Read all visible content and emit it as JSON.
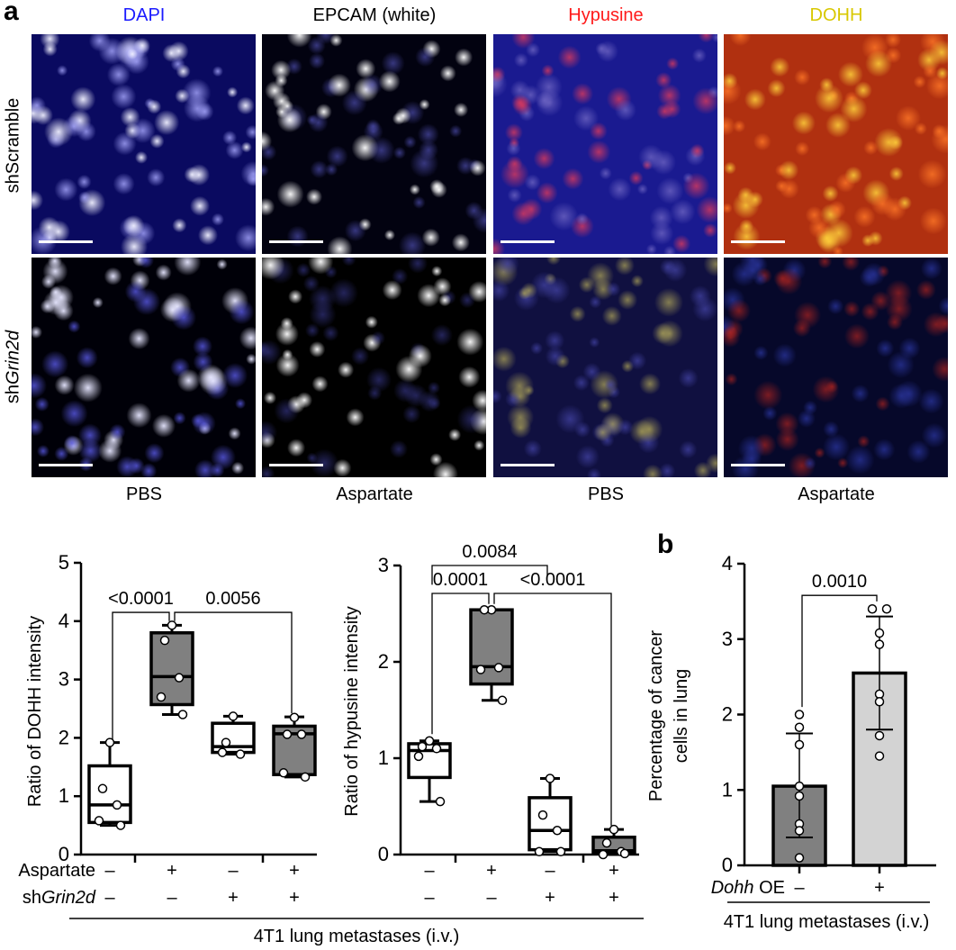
{
  "panel_a": {
    "letter": "a",
    "columns": [
      {
        "title": "DAPI",
        "color": "#1a1aff"
      },
      {
        "title": "EPCAM (white)",
        "color": "#000000"
      },
      {
        "title": "Hypusine",
        "color": "#ff1a1a"
      },
      {
        "title": "DOHH",
        "color": "#d8c800"
      }
    ],
    "rows": [
      "shScramble",
      "shGrin2d"
    ],
    "row_label_parts": [
      {
        "prefix": "shScramble",
        "italic": ""
      },
      {
        "prefix": "sh",
        "italic": "Grin2d"
      }
    ],
    "conditions": [
      "PBS",
      "Aspartate",
      "PBS",
      "Aspartate"
    ]
  },
  "panel_b": {
    "letter": "b"
  },
  "chart_data": [
    {
      "type": "box",
      "ylabel": "Ratio of DOHH intensity",
      "ylim": [
        0,
        5
      ],
      "yticks": [
        0,
        1,
        2,
        3,
        4,
        5
      ],
      "factor_rows": [
        {
          "label_prefix": "Aspartate",
          "label_italic": "",
          "signs": [
            "–",
            "+",
            "–",
            "+"
          ]
        },
        {
          "label_prefix": "sh",
          "label_italic": "Grin2d",
          "signs": [
            "–",
            "–",
            "+",
            "+"
          ]
        }
      ],
      "groups": [
        {
          "fill": "#ffffff",
          "q1": 0.55,
          "median": 0.85,
          "q3": 1.52,
          "min": 0.5,
          "max": 1.92,
          "points": [
            1.92,
            1.13,
            0.85,
            0.58,
            0.5
          ]
        },
        {
          "fill": "#808080",
          "q1": 2.57,
          "median": 3.05,
          "q3": 3.8,
          "min": 2.4,
          "max": 3.93,
          "points": [
            3.93,
            3.67,
            3.03,
            2.7,
            2.4
          ]
        },
        {
          "fill": "#ffffff",
          "q1": 1.75,
          "median": 1.85,
          "q3": 2.25,
          "min": 1.72,
          "max": 2.37,
          "points": [
            2.37,
            1.92,
            1.72,
            1.75
          ]
        },
        {
          "fill": "#808080",
          "q1": 1.37,
          "median": 2.07,
          "q3": 2.2,
          "min": 1.33,
          "max": 2.36,
          "points": [
            2.35,
            2.06,
            2.06,
            1.4,
            1.33
          ]
        }
      ],
      "comparisons": [
        {
          "from": 0,
          "to": 1,
          "y": 4.15,
          "label": "<0.0001",
          "from_bottom": 1.97,
          "to_bottom": 4.0
        },
        {
          "from": 1,
          "to": 3,
          "y": 4.15,
          "label": "0.0056",
          "from_bottom": 4.0,
          "to_bottom": 2.42
        }
      ]
    },
    {
      "type": "box",
      "ylabel": "Ratio of hypusine intensity",
      "ylim": [
        0,
        3
      ],
      "yticks": [
        0,
        1,
        2,
        3
      ],
      "factor_rows": [
        {
          "label_prefix": "",
          "label_italic": "",
          "signs": [
            "–",
            "+",
            "–",
            "+"
          ]
        },
        {
          "label_prefix": "",
          "label_italic": "",
          "signs": [
            "–",
            "–",
            "+",
            "+"
          ]
        }
      ],
      "groups": [
        {
          "fill": "#ffffff",
          "q1": 0.8,
          "median": 1.08,
          "q3": 1.15,
          "min": 0.55,
          "max": 1.18,
          "points": [
            1.18,
            1.12,
            1.1,
            1.02,
            0.55
          ]
        },
        {
          "fill": "#808080",
          "q1": 1.77,
          "median": 1.95,
          "q3": 2.54,
          "min": 1.6,
          "max": 2.54,
          "points": [
            2.54,
            2.54,
            1.94,
            1.92,
            1.6
          ]
        },
        {
          "fill": "#ffffff",
          "q1": 0.05,
          "median": 0.25,
          "q3": 0.59,
          "min": 0.03,
          "max": 0.79,
          "points": [
            0.79,
            0.41,
            0.25,
            0.03,
            0.03
          ]
        },
        {
          "fill": "#808080",
          "q1": 0.02,
          "median": 0.04,
          "q3": 0.18,
          "min": 0.0,
          "max": 0.26,
          "points": [
            0.26,
            0.12,
            0.03,
            0.0,
            0.01
          ]
        }
      ],
      "comparisons": [
        {
          "from": 0,
          "to": 1,
          "y": 2.71,
          "label": "0.0001",
          "from_bottom": 1.25,
          "to_bottom": 2.6
        },
        {
          "from": 1,
          "to": 3,
          "y": 2.71,
          "label": "<0.0001",
          "from_bottom": 2.6,
          "to_bottom": 0.3
        },
        {
          "from": 0,
          "to": 2,
          "y": 3.0,
          "label": "0.0084",
          "from_bottom": 2.8,
          "to_bottom": 2.9
        }
      ],
      "footer": "4T1 lung metastases (i.v.)"
    },
    {
      "type": "bar",
      "ylabel_lines": [
        "Percentage of cancer",
        "cells in lung"
      ],
      "ylim": [
        0,
        4
      ],
      "yticks": [
        0,
        1,
        2,
        3,
        4
      ],
      "factor_rows": [
        {
          "label_prefix": "",
          "label_italic": "Dohh",
          "label_suffix": " OE",
          "signs": [
            "–",
            "+"
          ]
        }
      ],
      "bars": [
        {
          "fill": "#808080",
          "mean": 1.05,
          "sd_low": 0.37,
          "sd_high": 1.75,
          "points": [
            2.0,
            1.83,
            1.6,
            1.05,
            0.92,
            0.55,
            0.46,
            0.1
          ]
        },
        {
          "fill": "#d3d3d3",
          "mean": 2.55,
          "sd_low": 1.8,
          "sd_high": 3.3,
          "points": [
            3.4,
            3.4,
            3.08,
            2.93,
            2.27,
            2.17,
            1.72,
            1.45
          ]
        }
      ],
      "comparisons": [
        {
          "from": 0,
          "to": 1,
          "y": 3.58,
          "label": "0.0010",
          "from_bottom": 2.1,
          "to_bottom": 3.5
        }
      ],
      "footer": "4T1 lung metastases (i.v.)"
    }
  ]
}
